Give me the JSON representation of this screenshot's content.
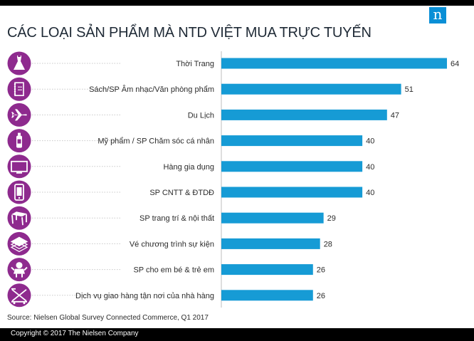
{
  "header": {
    "title": "CÁC LOẠI SẢN PHẨM MÀ NTD VIỆT MUA TRỰC TUYẾN",
    "logo_glyph": "n",
    "logo_icon": "nielsen-logo-icon"
  },
  "footer": {
    "source": "Source: Nielsen Global Survey Connected Commerce, Q1 2017",
    "copyright": "Copyright © 2017 The Nielsen Company"
  },
  "colors": {
    "bar": "#169bd5",
    "icon_circle": "#8e2a8e",
    "bars_text": "#2b2b2b",
    "dotted_line": "#c8c8c8",
    "logo": "#0a8fd6"
  },
  "chart_data": {
    "type": "bar",
    "orientation": "horizontal",
    "categories": [
      "Thời Trang",
      "Sách/SP Âm nhạc/Văn phòng phẩm",
      "Du Lịch",
      "Mỹ phẩm / SP Chăm sóc cá nhân",
      "Hàng gia dụng",
      "SP CNTT & ĐTDĐ",
      "SP trang trí &  nội thất",
      "Vé chương trình sự kiện",
      "SP cho em bé & trẻ em",
      "Dịch vụ giao hàng tận nơi của nhà hàng"
    ],
    "values": [
      64,
      51,
      47,
      40,
      40,
      40,
      29,
      28,
      26,
      26
    ],
    "icons": [
      "dress-icon",
      "notebook-icon",
      "airplane-icon",
      "cosmetics-bottle-icon",
      "tv-icon",
      "smartphone-icon",
      "table-icon",
      "tickets-icon",
      "baby-icon",
      "delivery-cart-icon"
    ],
    "xlim": [
      0,
      64
    ],
    "gridlines": false,
    "data_labels": true
  }
}
